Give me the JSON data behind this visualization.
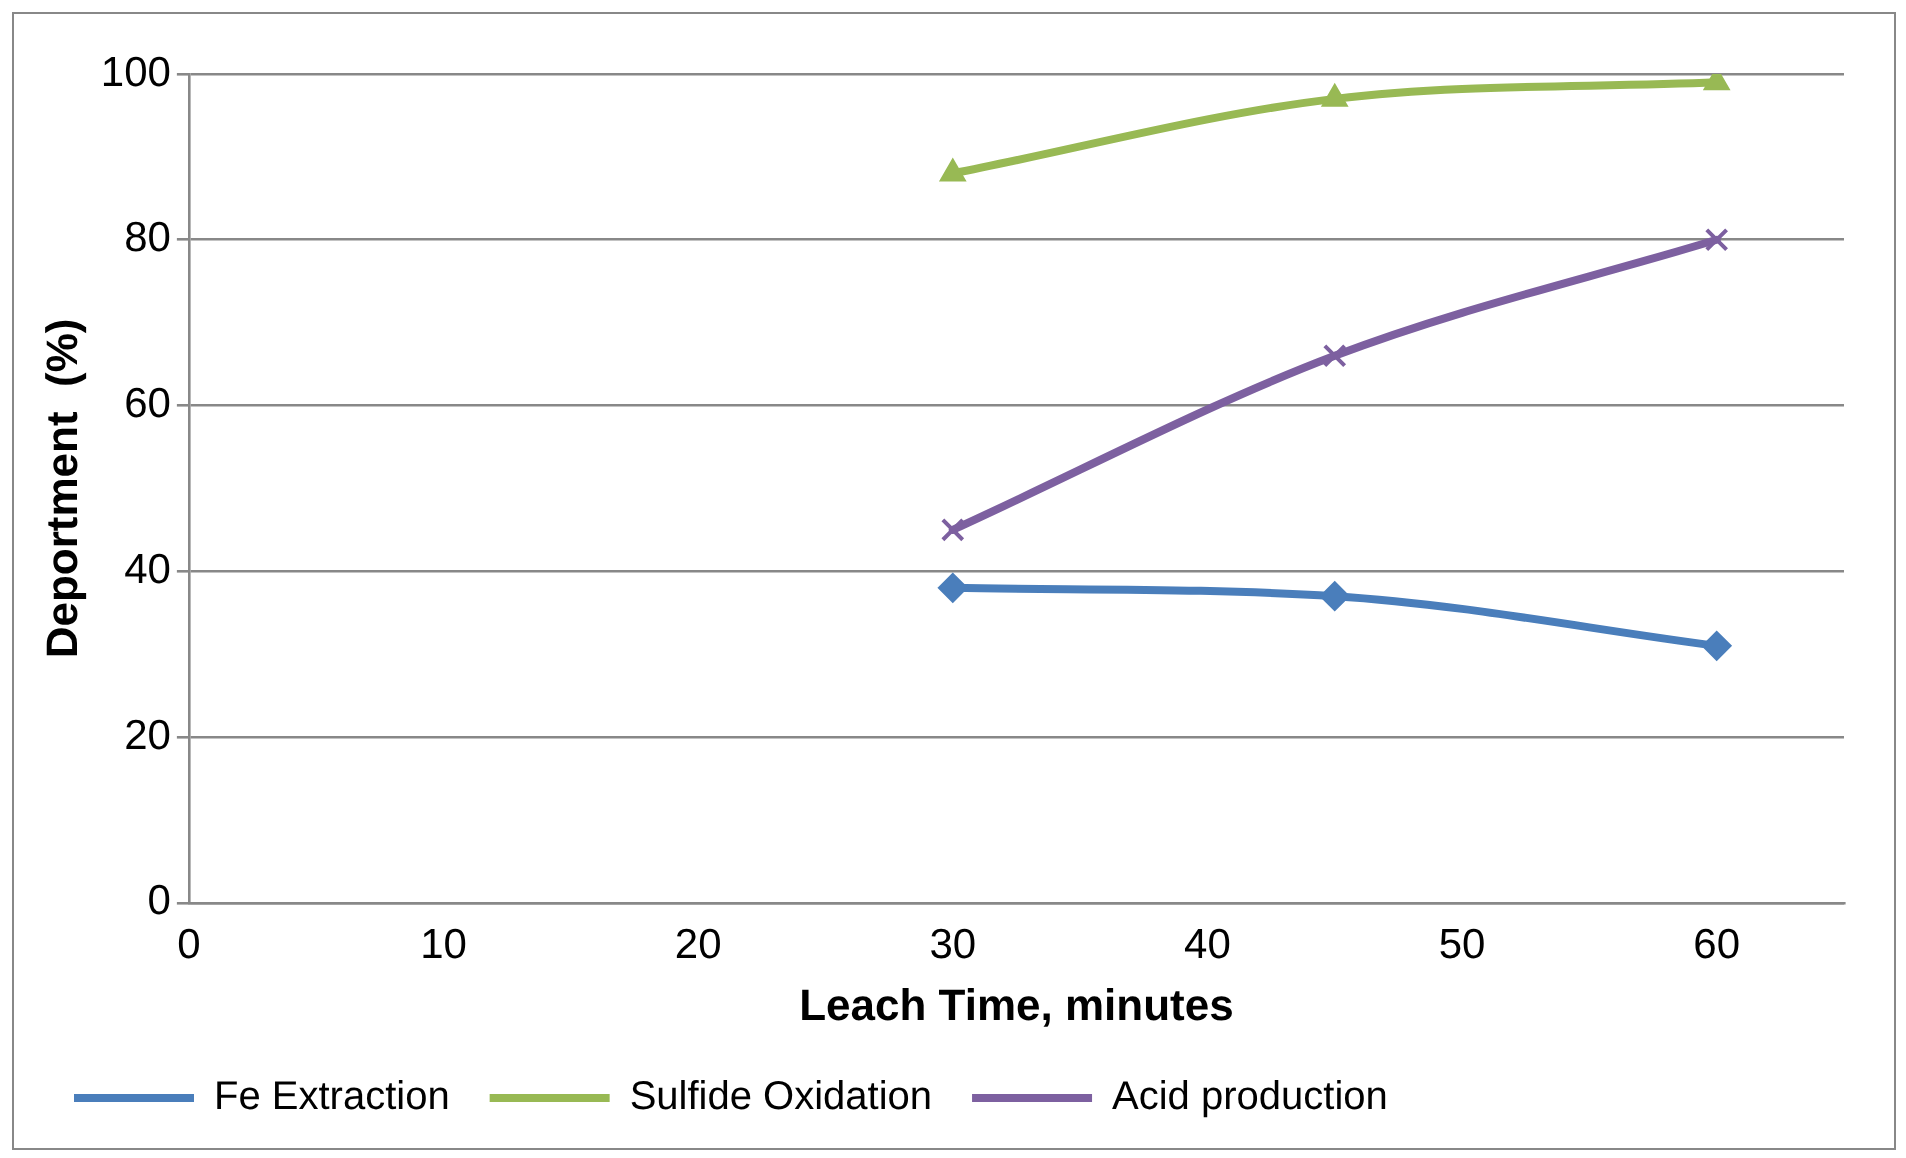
{
  "chart_data": {
    "type": "line",
    "xlabel": "Leach Time, minutes",
    "ylabel": "Deportment  (%)",
    "x": [
      30,
      45,
      60
    ],
    "series": [
      {
        "name": "Fe Extraction",
        "color": "#4a7ebb",
        "values": [
          38,
          37,
          31
        ],
        "marker": "diamond"
      },
      {
        "name": "Sulfide Oxidation",
        "color": "#98b954",
        "values": [
          88,
          97,
          99
        ],
        "marker": "triangle"
      },
      {
        "name": "Acid production",
        "color": "#7d60a0",
        "values": [
          45,
          66,
          80
        ],
        "marker": "cross"
      }
    ],
    "xlim": [
      0,
      65
    ],
    "xticks": [
      0,
      10,
      20,
      30,
      40,
      50,
      60
    ],
    "ylim": [
      0,
      100
    ],
    "yticks": [
      0,
      20,
      40,
      60,
      80,
      100
    ],
    "grid": "y",
    "legend": "bottom",
    "line_style": "solid"
  }
}
